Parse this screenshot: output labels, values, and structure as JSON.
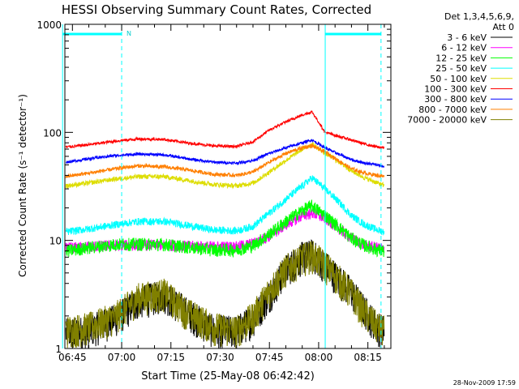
{
  "chart_data": {
    "type": "line",
    "title": "HESSI Observing Summary Count Rates, Corrected",
    "xlabel": "Start Time (25-May-08 06:42:42)",
    "ylabel": "Corrected Count Rate (s⁻¹ detector⁻¹)",
    "yscale": "log",
    "ylim": [
      1,
      1000
    ],
    "xlim": [
      "06:42",
      "08:22"
    ],
    "x_ticks": [
      "06:45",
      "07:00",
      "07:15",
      "07:30",
      "07:45",
      "08:00",
      "08:15"
    ],
    "y_ticks": [
      "1",
      "10",
      "100",
      "1000"
    ],
    "legend_title": [
      "Det 1,3,4,5,6,9,",
      "Att 0"
    ],
    "legend_position": "right",
    "grid": false,
    "footer": "28-Nov-2009 17:59",
    "annotations": {
      "night_flag_label": "N",
      "saa_markers": [
        "06:42",
        "07:00",
        "08:02",
        "08:19"
      ],
      "flag_bars": [
        [
          "06:42",
          "07:00"
        ],
        [
          "08:02",
          "08:19"
        ]
      ]
    },
    "x": [
      "06:43",
      "06:50",
      "06:58",
      "07:05",
      "07:13",
      "07:20",
      "07:28",
      "07:35",
      "07:40",
      "07:45",
      "07:50",
      "07:55",
      "07:58",
      "08:02",
      "08:06",
      "08:10",
      "08:14",
      "08:18",
      "08:20"
    ],
    "series": [
      {
        "name": "3 - 6 keV",
        "color": "#000000",
        "values": [
          1.4,
          1.5,
          1.9,
          2.8,
          3.2,
          2.2,
          1.5,
          1.5,
          1.9,
          3.2,
          5.5,
          7.2,
          7.6,
          6.0,
          4.5,
          3.4,
          2.3,
          1.6,
          1.5
        ]
      },
      {
        "name": "6 - 12 keV",
        "color": "#ff00ff",
        "values": [
          8.5,
          8.8,
          9.0,
          9.1,
          9.1,
          8.9,
          8.8,
          8.8,
          9.4,
          11.0,
          14.0,
          17.0,
          18.0,
          16.0,
          13.0,
          10.5,
          9.0,
          8.6,
          8.5
        ]
      },
      {
        "name": "12 - 25 keV",
        "color": "#00ff00",
        "values": [
          8.0,
          8.6,
          9.2,
          9.3,
          9.2,
          8.7,
          8.2,
          8.2,
          9.0,
          11.5,
          15.0,
          19.0,
          21.0,
          17.0,
          13.5,
          10.5,
          9.0,
          8.2,
          8.0
        ]
      },
      {
        "name": "25 - 50 keV",
        "color": "#00ffff",
        "values": [
          12.0,
          12.8,
          14.0,
          15.0,
          15.0,
          13.8,
          12.5,
          12.3,
          13.5,
          18.0,
          24.0,
          32.0,
          38.0,
          30.0,
          23.0,
          17.0,
          14.0,
          12.5,
          12.0
        ]
      },
      {
        "name": "50 - 100 keV",
        "color": "#dddd00",
        "values": [
          32.0,
          34.0,
          37.0,
          39.0,
          39.0,
          36.0,
          33.0,
          32.0,
          34.0,
          43.0,
          55.0,
          70.0,
          78.0,
          64.0,
          54.0,
          44.0,
          38.0,
          34.0,
          32.0
        ]
      },
      {
        "name": "100 - 300 keV",
        "color": "#ff0000",
        "values": [
          73.0,
          77.0,
          83.0,
          87.0,
          86.0,
          80.0,
          75.0,
          74.0,
          82.0,
          105.0,
          125.0,
          145.0,
          155.0,
          100.0,
          92.0,
          85.0,
          78.0,
          73.0,
          72.0
        ]
      },
      {
        "name": "300 - 800 keV",
        "color": "#0000ff",
        "values": [
          53.0,
          57.0,
          61.0,
          63.0,
          62.0,
          57.0,
          53.0,
          52.0,
          55.0,
          64.0,
          72.0,
          80.0,
          85.0,
          72.0,
          63.0,
          56.0,
          52.0,
          50.0,
          48.0
        ]
      },
      {
        "name": "800 - 7000 keV",
        "color": "#ff7f00",
        "values": [
          39.0,
          42.0,
          46.0,
          49.0,
          48.0,
          45.0,
          41.0,
          40.0,
          43.0,
          53.0,
          64.0,
          72.0,
          75.0,
          66.0,
          55.0,
          46.0,
          42.0,
          40.0,
          39.0
        ]
      },
      {
        "name": "7000 - 20000 keV",
        "color": "#808000",
        "values": [
          1.5,
          1.6,
          2.0,
          3.0,
          3.3,
          2.2,
          1.6,
          1.5,
          2.0,
          3.5,
          5.5,
          7.0,
          7.5,
          6.0,
          4.5,
          3.3,
          2.2,
          1.6,
          1.5
        ]
      }
    ]
  }
}
